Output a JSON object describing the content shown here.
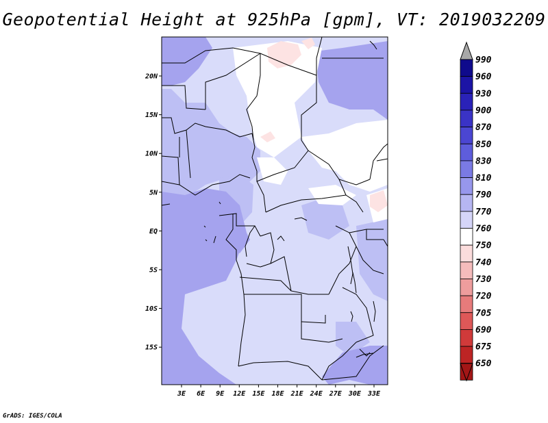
{
  "title": "Geopotential Height at 925hPa [gpm], VT: 2019032209",
  "credit": "GrADS: IGES/COLA",
  "map": {
    "longitude_labels": [
      "3E",
      "6E",
      "9E",
      "12E",
      "15E",
      "18E",
      "21E",
      "24E",
      "27E",
      "30E",
      "33E"
    ],
    "latitude_labels": [
      "20N",
      "15N",
      "10N",
      "5N",
      "EQ",
      "5S",
      "10S",
      "15S"
    ],
    "field_colors": {
      "base": "#d9dcfa",
      "medium": "#bdbff4",
      "deep": "#a5a3ee",
      "white": "#ffffff",
      "pink": "#fde3e3",
      "border": "#000000"
    }
  },
  "colorbar": {
    "levels": [
      "990",
      "960",
      "930",
      "900",
      "870",
      "850",
      "830",
      "810",
      "790",
      "770",
      "760",
      "750",
      "740",
      "730",
      "720",
      "705",
      "690",
      "675",
      "650"
    ],
    "colors": [
      "#0f0a8c",
      "#1c14a5",
      "#2a22b8",
      "#3a33c6",
      "#4b46d2",
      "#5e5ddc",
      "#7a7ae4",
      "#9797ec",
      "#b6b6f2",
      "#d5d5f8",
      "#ffffff",
      "#fbdcdc",
      "#f5bcbc",
      "#ee9d9d",
      "#e77b7b",
      "#de5858",
      "#d03a3a",
      "#bd2424",
      "#a31616"
    ],
    "top_arrow_color": "#a8a8a8",
    "bottom_arrow_color": "#a31616"
  }
}
